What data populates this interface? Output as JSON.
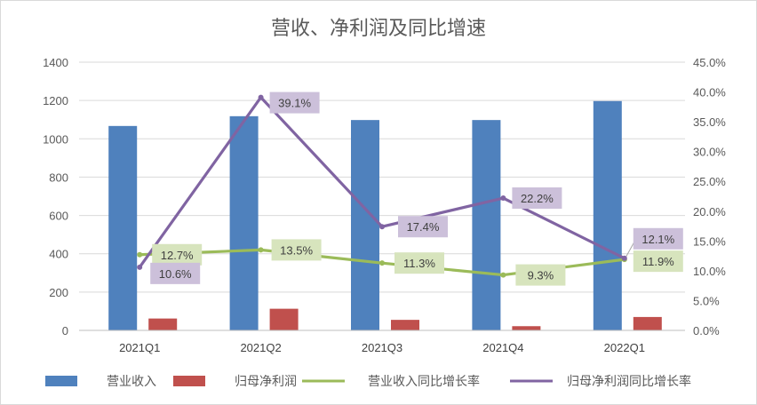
{
  "chart_data": {
    "type": "bar",
    "title": "营收、净利润及同比增速",
    "categories": [
      "2021Q1",
      "2021Q2",
      "2021Q3",
      "2021Q4",
      "2022Q1"
    ],
    "series": [
      {
        "name": "营业收入",
        "type": "bar",
        "axis": "left",
        "color": "#4f81bd",
        "values": [
          1067,
          1118,
          1098,
          1098,
          1197
        ]
      },
      {
        "name": "归母净利润",
        "type": "bar",
        "axis": "left",
        "color": "#c0504d",
        "values": [
          62,
          113,
          55,
          22,
          70
        ]
      },
      {
        "name": "营业收入同比增长率",
        "type": "line",
        "axis": "right",
        "color": "#9bbb59",
        "values": [
          12.7,
          13.5,
          11.3,
          9.3,
          11.9
        ],
        "labels": [
          "12.7%",
          "13.5%",
          "11.3%",
          "9.3%",
          "11.9%"
        ]
      },
      {
        "name": "归母净利润同比增长率",
        "type": "line",
        "axis": "right",
        "color": "#8064a2",
        "values": [
          10.6,
          39.1,
          17.4,
          22.2,
          12.1
        ],
        "labels": [
          "10.6%",
          "39.1%",
          "17.4%",
          "22.2%",
          "12.1%"
        ]
      }
    ],
    "y_left": {
      "min": 0,
      "max": 1400,
      "ticks": [
        "0",
        "200",
        "400",
        "600",
        "800",
        "1000",
        "1200",
        "1400"
      ]
    },
    "y_right": {
      "min": 0,
      "max": 45,
      "ticks": [
        "0.0%",
        "5.0%",
        "10.0%",
        "15.0%",
        "20.0%",
        "25.0%",
        "30.0%",
        "35.0%",
        "40.0%",
        "45.0%"
      ]
    },
    "grid": true,
    "legend_position": "bottom"
  }
}
